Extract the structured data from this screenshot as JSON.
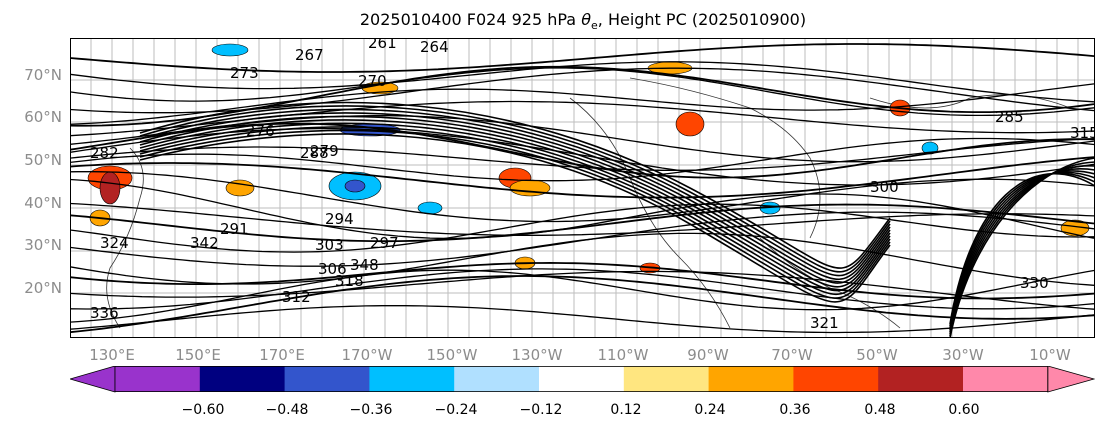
{
  "title_main": "2025010400 F024 925 hPa",
  "title_sym": "θ",
  "title_sub": "e",
  "title_rest": ", Height PC (2025010900)",
  "lat_ticks": [
    "70°N",
    "60°N",
    "50°N",
    "40°N",
    "30°N",
    "20°N"
  ],
  "lon_ticks": [
    "130°E",
    "150°E",
    "170°E",
    "170°W",
    "150°W",
    "130°W",
    "110°W",
    "90°W",
    "70°W",
    "50°W",
    "30°W",
    "10°W"
  ],
  "contour_labels": [
    "261",
    "264",
    "267",
    "270",
    "273",
    "276",
    "279",
    "282",
    "285",
    "288",
    "291",
    "294",
    "297",
    "300",
    "303",
    "306",
    "318",
    "321",
    "336",
    "342",
    "348",
    "324",
    "330",
    "312",
    "315"
  ],
  "colorbar": {
    "levels": [
      "−0.60",
      "−0.48",
      "−0.36",
      "−0.24",
      "−0.12",
      "0.12",
      "0.24",
      "0.36",
      "0.48",
      "0.60"
    ],
    "colors": [
      "#9933cc",
      "#000080",
      "#3355cc",
      "#00bfff",
      "#b0e0ff",
      "#ffffff",
      "#ffe680",
      "#ffa500",
      "#ff4500",
      "#b22222",
      "#ff88aa",
      "#ff88aa"
    ],
    "under_color": "#9933cc",
    "over_color": "#ff88aa"
  }
}
